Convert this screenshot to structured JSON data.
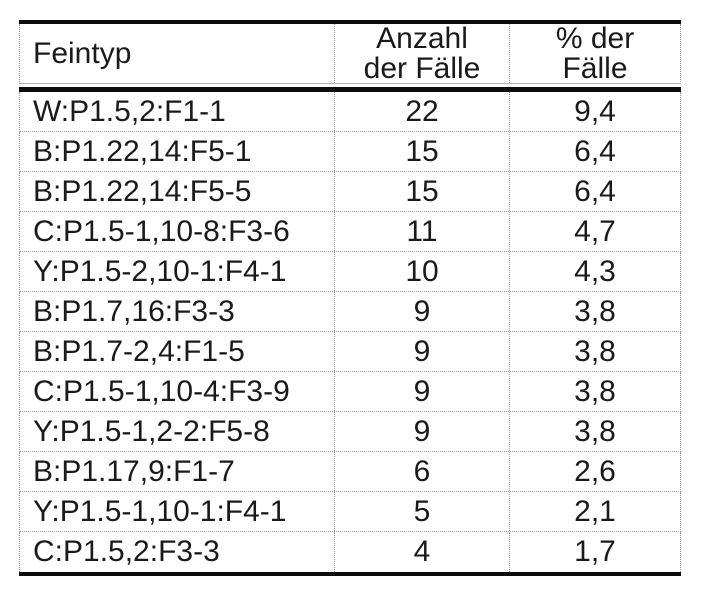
{
  "table": {
    "header": {
      "col1": "Feintyp",
      "col2_line1": "Anzahl",
      "col2_line2": "der Fälle",
      "col3_line1": "% der",
      "col3_line2": "Fälle"
    },
    "rows": [
      [
        "W:P1.5,2:F1-1",
        "22",
        "9,4"
      ],
      [
        "B:P1.22,14:F5-1",
        "15",
        "6,4"
      ],
      [
        "B:P1.22,14:F5-5",
        "15",
        "6,4"
      ],
      [
        "C:P1.5-1,10-8:F3-6",
        "11",
        "4,7"
      ],
      [
        "Y:P1.5-2,10-1:F4-1",
        "10",
        "4,3"
      ],
      [
        "B:P1.7,16:F3-3",
        "9",
        "3,8"
      ],
      [
        "B:P1.7-2,4:F1-5",
        "9",
        "3,8"
      ],
      [
        "C:P1.5-1,10-4:F3-9",
        "9",
        "3,8"
      ],
      [
        "Y:P1.5-1,2-2:F5-8",
        "9",
        "3,8"
      ],
      [
        "B:P1.17,9:F1-7",
        "6",
        "2,6"
      ],
      [
        "Y:P1.5-1,10-1:F4-1",
        "5",
        "2,1"
      ],
      [
        "C:P1.5,2:F3-3",
        "4",
        "1,7"
      ]
    ],
    "colors": {
      "text": "#1a1a1a",
      "thick_rule": "#0c0c0c",
      "dotted_grid": "#9a9a9a"
    }
  }
}
